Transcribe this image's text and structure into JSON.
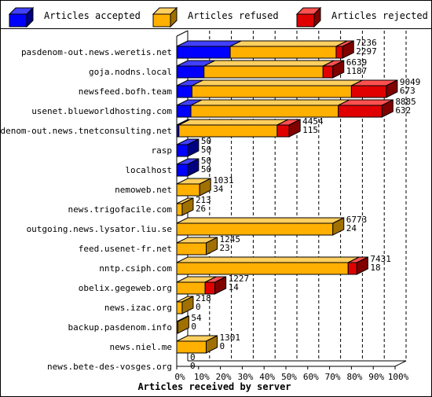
{
  "chart_data": {
    "type": "bar",
    "orientation": "horizontal",
    "stacked": true,
    "style": "3d",
    "xlabel": "Articles received by server",
    "xlim": [
      0,
      100
    ],
    "x_unit": "%",
    "x_ticks": [
      "0%",
      "10%",
      "20%",
      "30%",
      "40%",
      "50%",
      "60%",
      "70%",
      "80%",
      "90%",
      "100%"
    ],
    "grid": true,
    "legend_position": "top",
    "series": [
      {
        "name": "Articles accepted",
        "color": "#0000ff",
        "side": "#000080",
        "top": "#4040ff"
      },
      {
        "name": "Articles refused",
        "color": "#ffb000",
        "side": "#a07000",
        "top": "#ffd060"
      },
      {
        "name": "Articles rejected",
        "color": "#e00000",
        "side": "#800000",
        "top": "#ff5050"
      }
    ],
    "categories": [
      {
        "label": "pasdenom-out.news.weretis.net",
        "total": "7236",
        "second": "2297",
        "accepted": 24.5,
        "refused": 48.5,
        "rejected": 3.0
      },
      {
        "label": "goja.nodns.local",
        "total": "6639",
        "second": "1187",
        "accepted": 12.5,
        "refused": 54.5,
        "rejected": 4.5
      },
      {
        "label": "newsfeed.bofh.team",
        "total": "9049",
        "second": "673",
        "accepted": 7.0,
        "refused": 73.0,
        "rejected": 16.0
      },
      {
        "label": "usenet.blueworldhosting.com",
        "total": "8885",
        "second": "632",
        "accepted": 6.5,
        "refused": 67.5,
        "rejected": 20.0
      },
      {
        "label": "pasdenom-out.news.tnetconsulting.net",
        "total": "4454",
        "second": "115",
        "accepted": 1.0,
        "refused": 45.0,
        "rejected": 5.5
      },
      {
        "label": "rasp",
        "total": "50",
        "second": "50",
        "accepted": 5.0,
        "refused": 0,
        "rejected": 0
      },
      {
        "label": "localhost",
        "total": "50",
        "second": "50",
        "accepted": 5.0,
        "refused": 0,
        "rejected": 0
      },
      {
        "label": "nemoweb.net",
        "total": "1031",
        "second": "34",
        "accepted": 0,
        "refused": 10.5,
        "rejected": 0
      },
      {
        "label": "news.trigofacile.com",
        "total": "213",
        "second": "26",
        "accepted": 0,
        "refused": 2.5,
        "rejected": 0
      },
      {
        "label": "outgoing.news.lysator.liu.se",
        "total": "6773",
        "second": "24",
        "accepted": 0,
        "refused": 71.5,
        "rejected": 0
      },
      {
        "label": "feed.usenet-fr.net",
        "total": "1245",
        "second": "23",
        "accepted": 0,
        "refused": 13.5,
        "rejected": 0
      },
      {
        "label": "nntp.csiph.com",
        "total": "7431",
        "second": "18",
        "accepted": 0,
        "refused": 78.5,
        "rejected": 4.0
      },
      {
        "label": "obelix.gegeweb.org",
        "total": "1227",
        "second": "14",
        "accepted": 0,
        "refused": 13.0,
        "rejected": 4.5
      },
      {
        "label": "news.izac.org",
        "total": "218",
        "second": "0",
        "accepted": 0,
        "refused": 2.5,
        "rejected": 0
      },
      {
        "label": "backup.pasdenom.info",
        "total": "54",
        "second": "0",
        "accepted": 0,
        "refused": 0.5,
        "rejected": 0
      },
      {
        "label": "news.niel.me",
        "total": "1301",
        "second": "0",
        "accepted": 0,
        "refused": 13.5,
        "rejected": 0
      },
      {
        "label": "news.bete-des-vosges.org",
        "total": "0",
        "second": "0",
        "accepted": 0,
        "refused": 0,
        "rejected": 0
      }
    ]
  }
}
